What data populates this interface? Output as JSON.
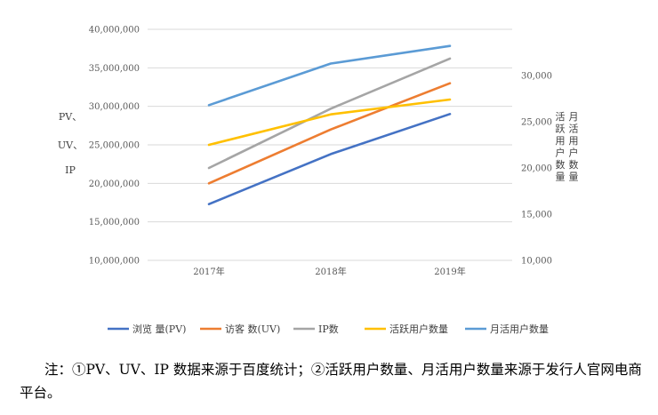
{
  "chart_data": {
    "type": "line",
    "categories": [
      "2017年",
      "2018年",
      "2019年"
    ],
    "left_axis": {
      "title": [
        "PV、",
        "UV、",
        "IP"
      ],
      "range": [
        10000000,
        40000000
      ],
      "step": 5000000,
      "tick_labels": [
        "10,000,000",
        "15,000,000",
        "20,000,000",
        "25,000,000",
        "30,000,000",
        "35,000,000",
        "40,000,000"
      ]
    },
    "right_axis": {
      "title_columns": [
        "月活用户数量",
        "活跃用户数量"
      ],
      "range": [
        10000,
        35000
      ],
      "step": 5000,
      "tick_labels": [
        "10,000",
        "15,000",
        "20,000",
        "25,000",
        "30,000"
      ]
    },
    "series": [
      {
        "name": "浏览 量(PV)",
        "axis": "left",
        "color": "#4472C4",
        "values": [
          17300000,
          23800000,
          29000000
        ]
      },
      {
        "name": "访客 数(UV)",
        "axis": "left",
        "color": "#ED7D31",
        "values": [
          20000000,
          27000000,
          33000000
        ]
      },
      {
        "name": "IP数",
        "axis": "left",
        "color": "#A5A5A5",
        "values": [
          22000000,
          29700000,
          36200000
        ]
      },
      {
        "name": "活跃用户数量",
        "axis": "right",
        "color": "#FFC000",
        "values": [
          22500,
          25800,
          27400
        ]
      },
      {
        "name": "月活用户数量",
        "axis": "right",
        "color": "#5B9BD5",
        "values": [
          26800,
          31300,
          33200
        ]
      }
    ],
    "grid": true,
    "legend_position": "bottom"
  },
  "note": "注：①PV、UV、IP 数据来源于百度统计；②活跃用户数量、月活用户数量来源于发行人官网电商平台。"
}
